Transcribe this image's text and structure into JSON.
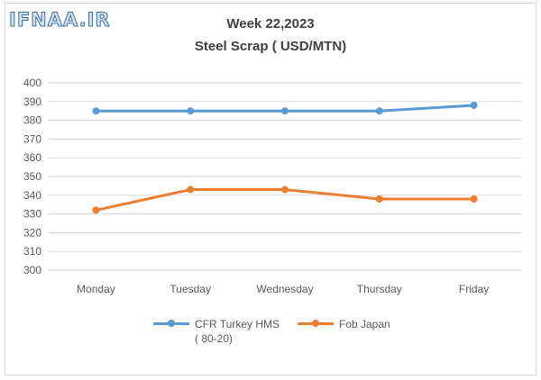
{
  "watermark": "IFNAA.IR",
  "chart_data": {
    "type": "line",
    "title": "Week 22,2023",
    "subtitle": "Steel Scrap ( USD/MTN)",
    "categories": [
      "Monday",
      "Tuesday",
      "Wednesday",
      "Thursday",
      "Friday"
    ],
    "series": [
      {
        "name": "CFR Turkey HMS ( 80-20)",
        "color": "#5b9bd5",
        "values": [
          385,
          385,
          385,
          385,
          388
        ]
      },
      {
        "name": "Fob Japan",
        "color": "#ed7d31",
        "values": [
          332,
          343,
          343,
          338,
          338
        ]
      }
    ],
    "ylim": [
      300,
      400
    ],
    "yticks": [
      300,
      310,
      320,
      330,
      340,
      350,
      360,
      370,
      380,
      390,
      400
    ],
    "grid": true,
    "legend": "bottom"
  }
}
